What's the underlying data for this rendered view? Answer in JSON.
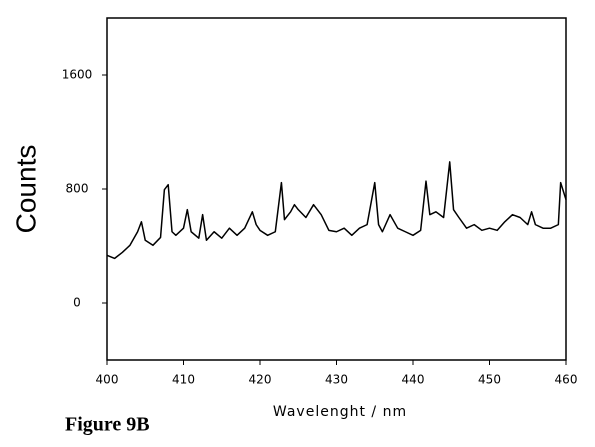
{
  "chart_data": {
    "type": "line",
    "ylabel": "Counts",
    "xlabel": "Wavelenght / nm",
    "caption": "Figure 9B",
    "x": [
      400,
      401,
      402,
      403,
      404,
      404.5,
      405,
      406,
      407,
      407.5,
      408,
      408.5,
      409,
      410,
      410.5,
      411,
      412,
      412.5,
      413,
      414,
      415,
      416,
      417,
      418,
      419,
      419.5,
      420,
      421,
      422,
      422.8,
      423.2,
      424,
      424.5,
      425,
      426,
      427,
      428,
      429,
      430,
      431,
      432,
      433,
      434,
      435,
      435.5,
      436,
      437,
      438,
      439,
      440,
      441,
      441.7,
      442.2,
      443,
      444,
      444.8,
      445.3,
      446,
      447,
      448,
      449,
      450,
      451,
      452,
      453,
      454,
      455,
      455.5,
      456,
      457,
      458,
      459,
      459.3,
      460
    ],
    "values": [
      335,
      313,
      355,
      405,
      500,
      570,
      440,
      405,
      460,
      795,
      830,
      500,
      475,
      525,
      655,
      500,
      455,
      620,
      440,
      500,
      455,
      525,
      475,
      525,
      640,
      550,
      510,
      475,
      500,
      845,
      585,
      640,
      690,
      655,
      600,
      690,
      620,
      510,
      500,
      525,
      475,
      525,
      550,
      845,
      550,
      500,
      620,
      525,
      500,
      475,
      510,
      855,
      620,
      640,
      600,
      990,
      655,
      600,
      525,
      550,
      510,
      525,
      510,
      570,
      620,
      600,
      550,
      640,
      550,
      525,
      525,
      550,
      845,
      725
    ],
    "color": "#000000",
    "xlim": [
      400,
      460
    ],
    "xticks": [
      400,
      410,
      420,
      430,
      440,
      450,
      460
    ],
    "ylim": [
      -400,
      2000
    ],
    "yticks": [
      0,
      800,
      1600
    ]
  }
}
